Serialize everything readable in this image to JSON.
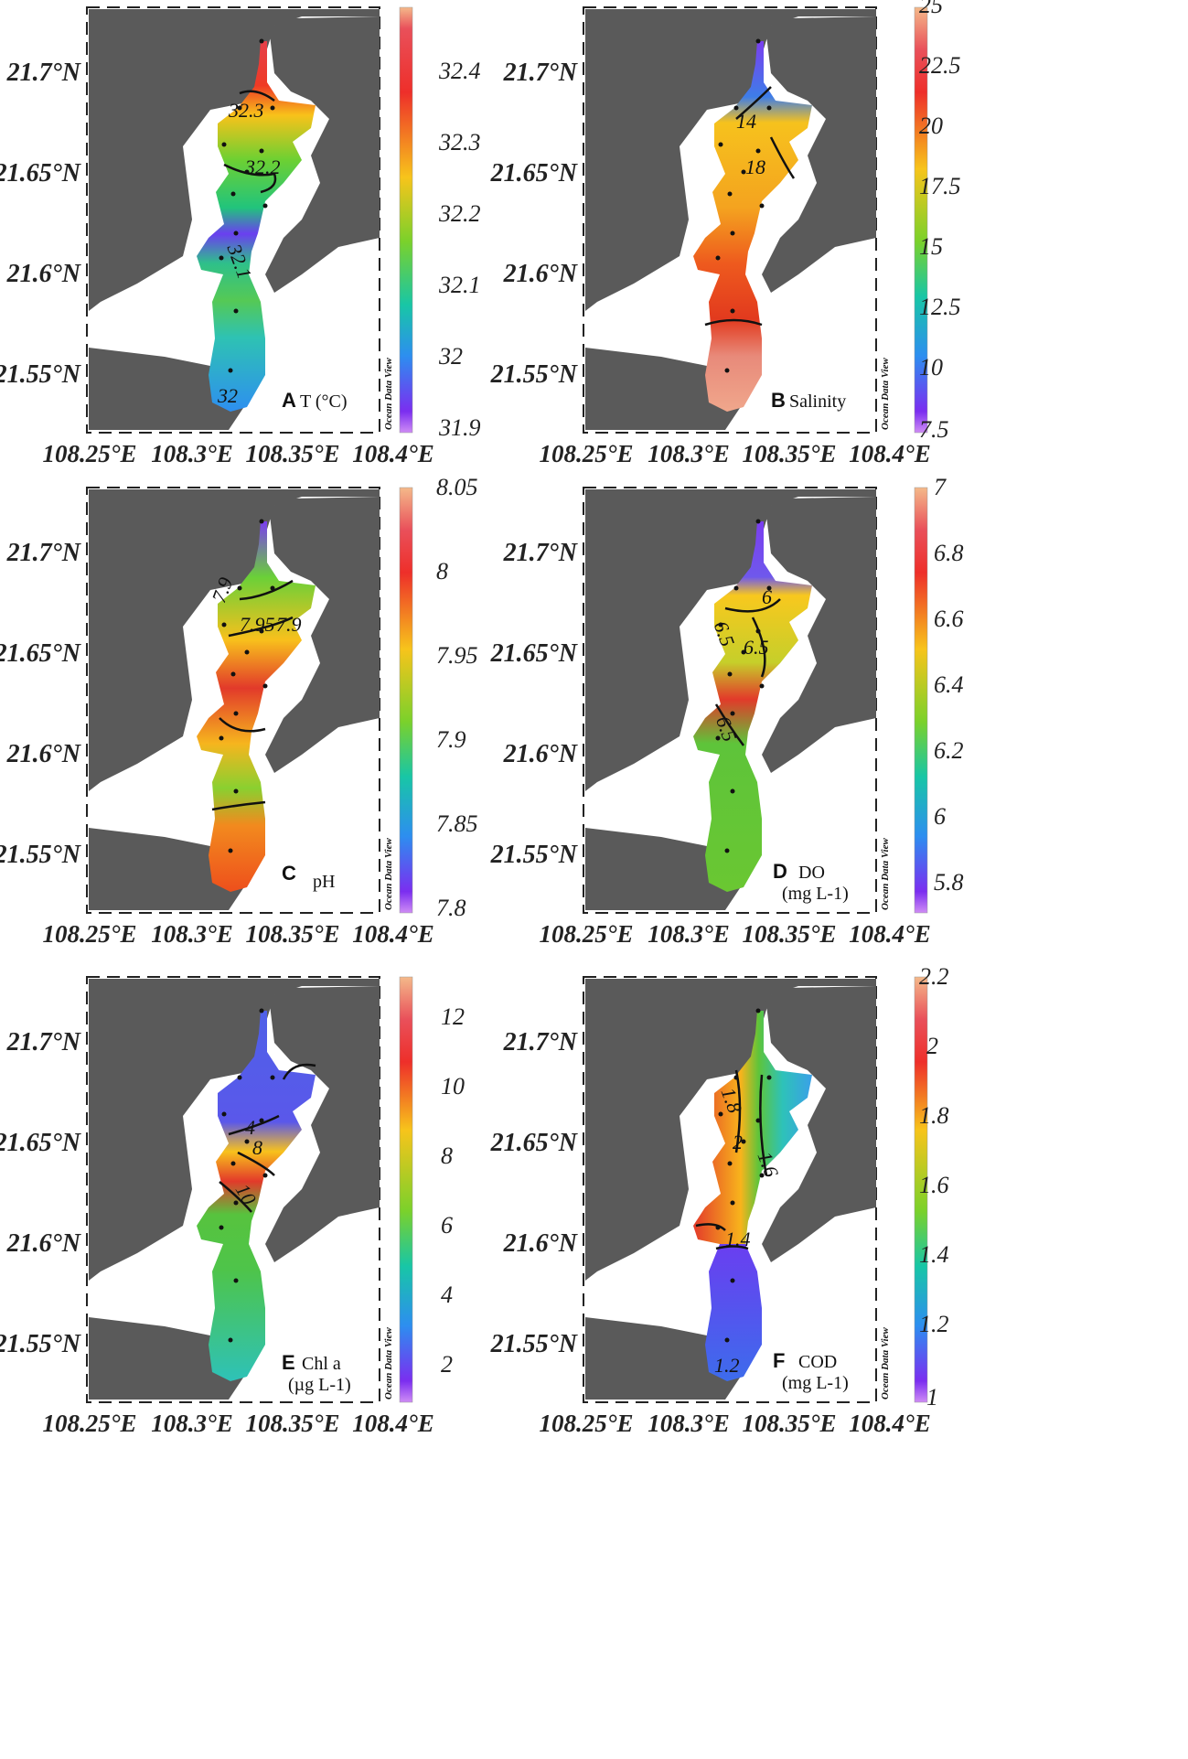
{
  "panels": [
    {
      "id": "A",
      "variable": "T (°C)",
      "unit_line": "",
      "lat_ticks": [
        "21.7°N",
        "21.65°N",
        "21.6°N",
        "21.55°N"
      ],
      "lon_ticks": [
        "108.25°E",
        "108.3°E",
        "108.35°E",
        "108.4°E"
      ],
      "colorbar": {
        "min": 31.85,
        "max": 32.45,
        "ticks": [
          "32.4",
          "32.3",
          "32.2",
          "32.1",
          "32",
          "31.9"
        ]
      },
      "isolines": [
        "32.3",
        "32.2",
        "32.1",
        "32"
      ],
      "watermark": "Ocean Data View"
    },
    {
      "id": "B",
      "variable": "Salinity",
      "unit_line": "",
      "lat_ticks": [
        "21.7°N",
        "21.65°N",
        "21.6°N",
        "21.55°N"
      ],
      "lon_ticks": [
        "108.25°E",
        "108.3°E",
        "108.35°E",
        "108.4°E"
      ],
      "colorbar": {
        "min": 7.5,
        "max": 25,
        "ticks": [
          "25",
          "22.5",
          "20",
          "17.5",
          "15",
          "12.5",
          "10",
          "7.5"
        ]
      },
      "isolines": [
        "14",
        "18"
      ],
      "watermark": "Ocean Data View"
    },
    {
      "id": "C",
      "variable": "pH",
      "unit_line": "",
      "lat_ticks": [
        "21.7°N",
        "21.65°N",
        "21.6°N",
        "21.55°N"
      ],
      "lon_ticks": [
        "108.25°E",
        "108.3°E",
        "108.35°E",
        "108.4°E"
      ],
      "colorbar": {
        "min": 7.8,
        "max": 8.05,
        "ticks": [
          "8.05",
          "8",
          "7.95",
          "7.9",
          "7.85",
          "7.8"
        ]
      },
      "isolines": [
        "7.95",
        "7.9",
        "7.9"
      ],
      "watermark": "Ocean Data View"
    },
    {
      "id": "D",
      "variable": "DO",
      "unit_line": "(mg L-1)",
      "lat_ticks": [
        "21.7°N",
        "21.65°N",
        "21.6°N",
        "21.55°N"
      ],
      "lon_ticks": [
        "108.25°E",
        "108.3°E",
        "108.35°E",
        "108.4°E"
      ],
      "colorbar": {
        "min": 5.7,
        "max": 7,
        "ticks": [
          "7",
          "6.8",
          "6.6",
          "6.4",
          "6.2",
          "6",
          "5.8"
        ]
      },
      "isolines": [
        "6",
        "6.5",
        "6.5",
        "6.5"
      ],
      "watermark": "Ocean Data View"
    },
    {
      "id": "E",
      "variable": "Chl a",
      "unit_line": "(µg L-1)",
      "lat_ticks": [
        "21.7°N",
        "21.65°N",
        "21.6°N",
        "21.55°N"
      ],
      "lon_ticks": [
        "108.25°E",
        "108.3°E",
        "108.35°E",
        "108.4°E"
      ],
      "colorbar": {
        "min": 0.5,
        "max": 13,
        "ticks": [
          "12",
          "10",
          "8",
          "6",
          "4",
          "2"
        ]
      },
      "isolines": [
        "4",
        "8",
        "10"
      ],
      "watermark": "Ocean Data View"
    },
    {
      "id": "F",
      "variable": "COD",
      "unit_line": "(mg L-1)",
      "lat_ticks": [
        "21.7°N",
        "21.65°N",
        "21.6°N",
        "21.55°N"
      ],
      "lon_ticks": [
        "108.25°E",
        "108.3°E",
        "108.35°E",
        "108.4°E"
      ],
      "colorbar": {
        "min": 1,
        "max": 2.2,
        "ticks": [
          "2.2",
          "2",
          "1.8",
          "1.6",
          "1.4",
          "1.2",
          "1"
        ]
      },
      "isolines": [
        "1.8",
        "2",
        "1.6",
        "1.4",
        "1.2"
      ],
      "watermark": "Ocean Data View"
    }
  ]
}
